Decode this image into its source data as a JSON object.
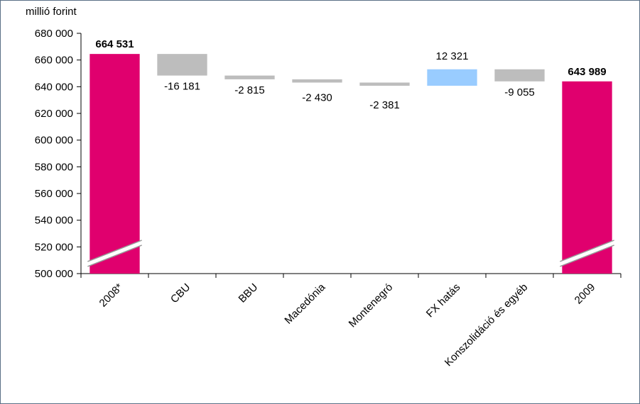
{
  "chart_data": {
    "type": "bar",
    "subtype": "waterfall",
    "ylabel": "millió forint",
    "ylim": [
      500000,
      680000
    ],
    "y_ticks": [
      "500 000",
      "520 000",
      "540 000",
      "560 000",
      "580 000",
      "600 000",
      "620 000",
      "640 000",
      "660 000",
      "680 000"
    ],
    "y_tick_values": [
      500000,
      520000,
      540000,
      560000,
      580000,
      600000,
      620000,
      640000,
      660000,
      680000
    ],
    "axis_break": true,
    "categories": [
      "2008*",
      "CBU",
      "BBU",
      "Macedónia",
      "Montenegró",
      "FX hatás",
      "Konszolidáció és egyéb",
      "2009"
    ],
    "bars": [
      {
        "category": "2008*",
        "kind": "total",
        "value": 664531,
        "label": "664 531",
        "bold": true
      },
      {
        "category": "CBU",
        "kind": "change",
        "value": -16181,
        "label": "-16 181"
      },
      {
        "category": "BBU",
        "kind": "change",
        "value": -2815,
        "label": "-2 815"
      },
      {
        "category": "Macedónia",
        "kind": "change",
        "value": -2430,
        "label": "-2 430"
      },
      {
        "category": "Montenegró",
        "kind": "change",
        "value": -2381,
        "label": "-2 381"
      },
      {
        "category": "FX hatás",
        "kind": "change",
        "value": 12321,
        "label": "12 321"
      },
      {
        "category": "Konszolidáció és egyéb",
        "kind": "change",
        "value": -9055,
        "label": "-9 055"
      },
      {
        "category": "2009",
        "kind": "total",
        "value": 643989,
        "label": "643 989",
        "bold": true
      }
    ],
    "colors": {
      "total": "#e0006e",
      "decrease": "#bdbdbd",
      "increase": "#99ccff",
      "axis": "#000000",
      "frame": "#5a6f86"
    },
    "grid": false,
    "legend": "none"
  }
}
